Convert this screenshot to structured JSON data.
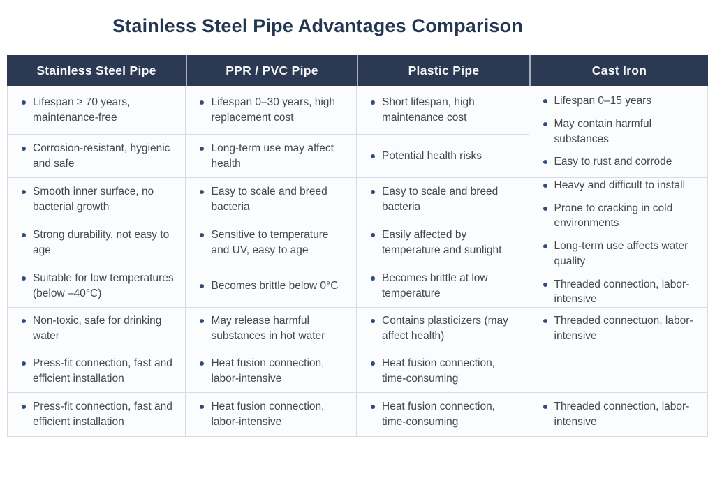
{
  "page_title": "Stainless Steel Pipe Advantages Comparison",
  "colors": {
    "title_text": "#233850",
    "header_background": "#2b3a52",
    "header_text": "#f4f6f8",
    "body_text": "#43484f",
    "bullet": "#2e4d7b",
    "grid_border": "#d8dce2",
    "cell_background": "#fbfcfd",
    "page_background": "#ffffff"
  },
  "chart_data": {
    "type": "table",
    "title": "Stainless Steel Pipe Advantages Comparison",
    "layout_hint": "4 comparison columns, 8 body rows; Cast Iron column merges rows 1-2 and rows 3-5; row 7 of Cast Iron is empty",
    "columns": [
      {
        "header": "Stainless Steel Pipe",
        "cells": [
          {
            "row_span": 1,
            "items": [
              "Lifespan ≥ 70 years, maintenance-free"
            ]
          },
          {
            "row_span": 1,
            "items": [
              "Corrosion-resistant, hygienic and safe"
            ]
          },
          {
            "row_span": 1,
            "items": [
              "Smooth inner surface, no bacterial growth"
            ]
          },
          {
            "row_span": 1,
            "items": [
              "Strong durability, not easy to age"
            ]
          },
          {
            "row_span": 1,
            "items": [
              "Suitable for low temperatures (below –40°C)"
            ]
          },
          {
            "row_span": 1,
            "items": [
              "Non-toxic, safe for drinking water"
            ]
          },
          {
            "row_span": 1,
            "items": [
              "Press-fit connection, fast and efficient installation"
            ]
          },
          {
            "row_span": 1,
            "items": [
              "Press-fit connection, fast and efficient installation"
            ]
          }
        ]
      },
      {
        "header": "PPR / PVC Pipe",
        "cells": [
          {
            "row_span": 1,
            "items": [
              "Lifespan 0–30 years, high replacement cost"
            ]
          },
          {
            "row_span": 1,
            "items": [
              "Long-term use may affect health"
            ]
          },
          {
            "row_span": 1,
            "items": [
              "Easy to scale and breed bacteria"
            ]
          },
          {
            "row_span": 1,
            "items": [
              "Sensitive to temperature and UV, easy to age"
            ]
          },
          {
            "row_span": 1,
            "items": [
              "Becomes brittle below 0°C"
            ]
          },
          {
            "row_span": 1,
            "items": [
              "May release harmful substances in hot water"
            ]
          },
          {
            "row_span": 1,
            "items": [
              "Heat fusion connection, labor-intensive"
            ]
          },
          {
            "row_span": 1,
            "items": [
              "Heat fusion connection, labor-intensive"
            ]
          }
        ]
      },
      {
        "header": "Plastic Pipe",
        "cells": [
          {
            "row_span": 1,
            "items": [
              "Short lifespan, high maintenance cost"
            ]
          },
          {
            "row_span": 1,
            "items": [
              "Potential health risks"
            ]
          },
          {
            "row_span": 1,
            "items": [
              "Easy to scale and breed bacteria"
            ]
          },
          {
            "row_span": 1,
            "items": [
              "Easily affected by temperature and sunlight"
            ]
          },
          {
            "row_span": 1,
            "items": [
              "Becomes brittle at low temperature"
            ]
          },
          {
            "row_span": 1,
            "items": [
              "Contains plasticizers (may affect health)"
            ]
          },
          {
            "row_span": 1,
            "items": [
              "Heat fusion connection, time-consuming"
            ]
          },
          {
            "row_span": 1,
            "items": [
              "Heat fusion connection, time-consuming"
            ]
          }
        ]
      },
      {
        "header": "Cast Iron",
        "cells": [
          {
            "row_span": 2,
            "items": [
              "Lifespan 0–15 years",
              "May contain harmful substances",
              "Easy to rust and corrode"
            ]
          },
          {
            "row_span": 3,
            "items": [
              "Heavy and difficult to install",
              "Prone to cracking in cold environments",
              "Long-term use affects water quality",
              "Threaded connection, labor-intensive"
            ]
          },
          {
            "row_span": 1,
            "items": [
              "Threaded connectuon, labor-intensive"
            ]
          },
          {
            "row_span": 1,
            "items": []
          },
          {
            "row_span": 1,
            "items": [
              "Threaded connection, labor-intensive"
            ]
          }
        ]
      }
    ]
  }
}
